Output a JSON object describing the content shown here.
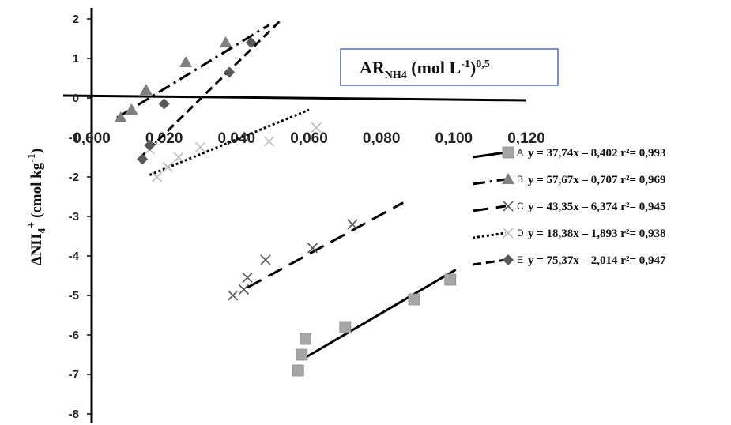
{
  "chart_data": {
    "type": "scatter",
    "xlabel": "AR_NH4 (mol L-1)0,5",
    "xlabel_parts": {
      "main": "AR",
      "sub": "NH4",
      "units": " (mol L",
      "units_sup": "-1",
      "close": ")",
      "exp": "0,5"
    },
    "ylabel": "ΔNH4+ (cmol kg-1)",
    "ylabel_parts": {
      "main": "ΔNH",
      "sub": "4",
      "sup": "+",
      "units": " (cmol kg",
      "units_sup": "-1",
      "close": ")"
    },
    "xlim": [
      0,
      0.12
    ],
    "ylim": [
      -8,
      2
    ],
    "x_ticks": [
      "0,000",
      "0,020",
      "0,040",
      "0,060",
      "0,080",
      "0,100",
      "0,120"
    ],
    "x_tick_values": [
      0,
      0.02,
      0.04,
      0.06,
      0.08,
      0.1,
      0.12
    ],
    "y_ticks": [
      "2",
      "1",
      "0",
      "-1",
      "-2",
      "-3",
      "-4",
      "-5",
      "-6",
      "-7",
      "-8"
    ],
    "y_tick_values": [
      2,
      1,
      0,
      -1,
      -2,
      -3,
      -4,
      -5,
      -6,
      -7,
      -8
    ],
    "legend_position": "right",
    "series": [
      {
        "name": "A",
        "equation": "y = 37,74x – 8,402 r²= 0,993",
        "marker": "square",
        "line_style": "solid",
        "color": "#a6a6a6",
        "x": [
          0.057,
          0.058,
          0.059,
          0.07,
          0.089,
          0.099
        ],
        "y": [
          -6.9,
          -6.5,
          -6.1,
          -5.8,
          -5.1,
          -4.6
        ],
        "fit": {
          "x": [
            0.0585,
            0.1005
          ],
          "y": [
            -6.6,
            -4.35
          ]
        }
      },
      {
        "name": "B",
        "equation": "y = 57,67x – 0,707 r²= 0,969",
        "marker": "triangle",
        "line_style": "dashdot",
        "color": "#7f7f7f",
        "x": [
          0.008,
          0.011,
          0.015,
          0.026,
          0.037
        ],
        "y": [
          -0.5,
          -0.3,
          0.2,
          0.9,
          1.4
        ],
        "fit": {
          "x": [
            0.007,
            0.049
          ],
          "y": [
            -0.5,
            1.85
          ]
        }
      },
      {
        "name": "C",
        "equation": "y = 43,35x – 6,374 r²= 0,945",
        "marker": "x",
        "line_style": "longdash",
        "color": "#595959",
        "x": [
          0.039,
          0.042,
          0.043,
          0.048,
          0.061,
          0.072
        ],
        "y": [
          -5.0,
          -4.85,
          -4.55,
          -4.1,
          -3.8,
          -3.2
        ],
        "fit": {
          "x": [
            0.043,
            0.086
          ],
          "y": [
            -4.8,
            -2.65
          ]
        }
      },
      {
        "name": "D",
        "equation": "y = 18,38x – 1,893 r²= 0,938",
        "marker": "x",
        "line_style": "dotted",
        "color": "#bfbfbf",
        "x": [
          0.016,
          0.018,
          0.021,
          0.024,
          0.03,
          0.049,
          0.062
        ],
        "y": [
          -1.3,
          -2.0,
          -1.75,
          -1.5,
          -1.25,
          -1.1,
          -0.75
        ],
        "fit": {
          "x": [
            0.016,
            0.06
          ],
          "y": [
            -1.95,
            -0.3
          ]
        }
      },
      {
        "name": "E",
        "equation": "y = 75,37x – 2,014 r²= 0,947",
        "marker": "diamond",
        "line_style": "dashed",
        "color": "#595959",
        "x": [
          0.014,
          0.016,
          0.02,
          0.038,
          0.044
        ],
        "y": [
          -1.55,
          -1.2,
          -0.15,
          0.65,
          1.4
        ],
        "fit": {
          "x": [
            0.013,
            0.052
          ],
          "y": [
            -1.55,
            1.95
          ]
        }
      }
    ]
  }
}
